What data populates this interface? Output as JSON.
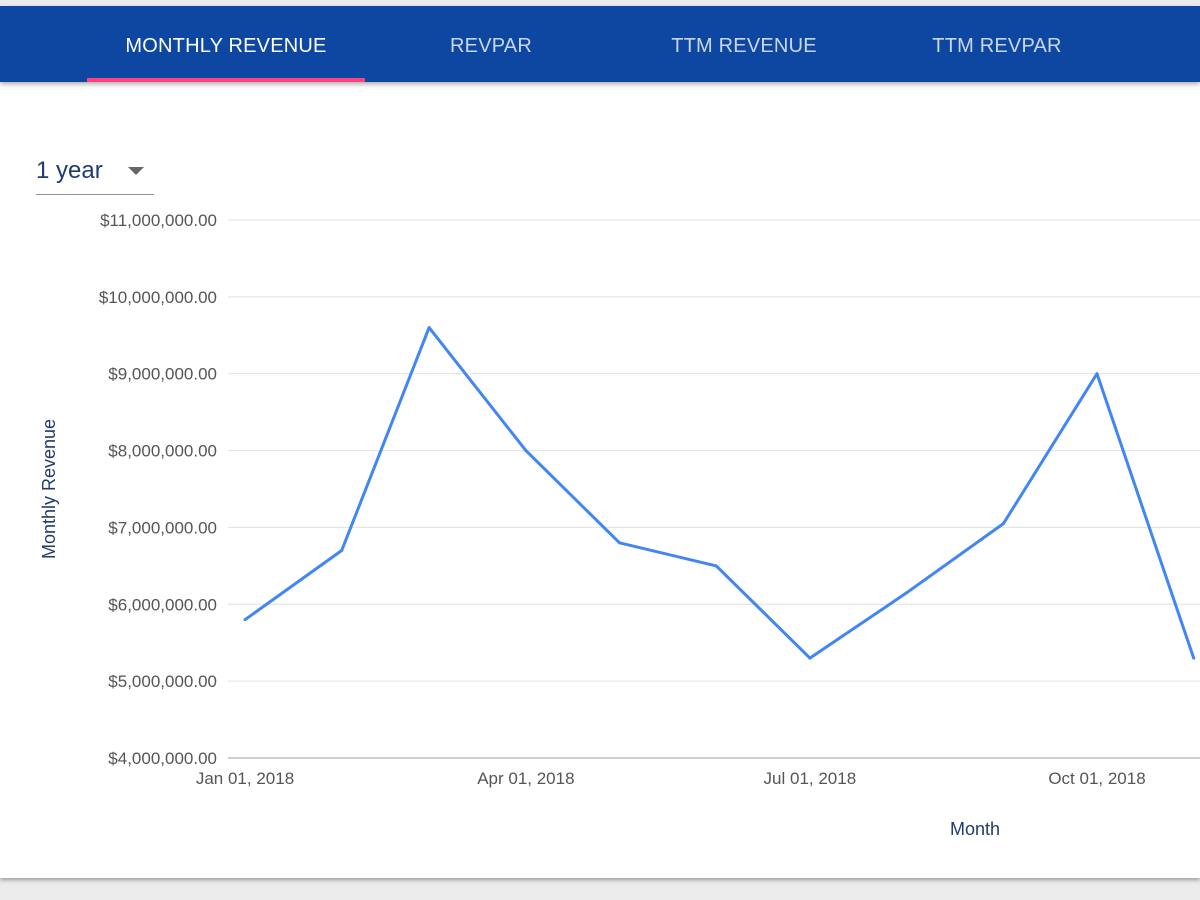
{
  "tabs": [
    {
      "label": "MONTHLY REVENUE",
      "active": true
    },
    {
      "label": "REVPAR",
      "active": false
    },
    {
      "label": "TTM REVENUE",
      "active": false
    },
    {
      "label": "TTM REVPAR",
      "active": false
    }
  ],
  "colors": {
    "tab_bar": "#0d47a1",
    "tab_indicator": "#ff4081",
    "line": "#4285f4",
    "gridline": "#e0e0e0"
  },
  "range_select": {
    "value": "1 year",
    "icon": "caret-down-icon"
  },
  "chart_data": {
    "type": "line",
    "xlabel": "Month",
    "ylabel": "Monthly Revenue",
    "ylim": [
      4000000,
      11000000
    ],
    "y_ticks": [
      {
        "value": 11000000,
        "label": "$11,000,000.00"
      },
      {
        "value": 10000000,
        "label": "$10,000,000.00"
      },
      {
        "value": 9000000,
        "label": "$9,000,000.00"
      },
      {
        "value": 8000000,
        "label": "$8,000,000.00"
      },
      {
        "value": 7000000,
        "label": "$7,000,000.00"
      },
      {
        "value": 6000000,
        "label": "$6,000,000.00"
      },
      {
        "value": 5000000,
        "label": "$5,000,000.00"
      },
      {
        "value": 4000000,
        "label": "$4,000,000.00"
      }
    ],
    "x_ticks": [
      "Jan 01, 2018",
      "Apr 01, 2018",
      "Jul 01, 2018",
      "Oct 01, 2018"
    ],
    "grid": true,
    "legend": "none",
    "series": [
      {
        "points": [
          {
            "x": "2018-01-01",
            "y": 5800000
          },
          {
            "x": "2018-02-01",
            "y": 6700000
          },
          {
            "x": "2018-03-01",
            "y": 9600000
          },
          {
            "x": "2018-04-01",
            "y": 8000000
          },
          {
            "x": "2018-05-01",
            "y": 6800000
          },
          {
            "x": "2018-06-01",
            "y": 6500000
          },
          {
            "x": "2018-07-01",
            "y": 5300000
          },
          {
            "x": "2018-08-01",
            "y": 6150000
          },
          {
            "x": "2018-09-01",
            "y": 7050000
          },
          {
            "x": "2018-10-01",
            "y": 9000000
          },
          {
            "x": "2018-11-01",
            "y": 5300000
          }
        ]
      }
    ]
  }
}
